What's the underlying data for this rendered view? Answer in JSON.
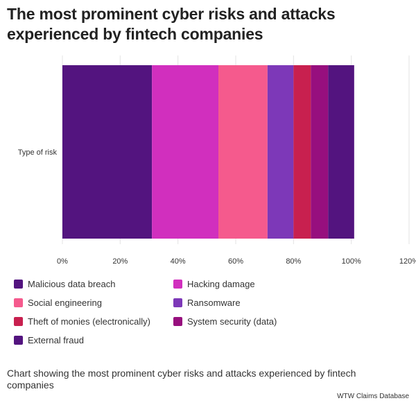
{
  "title": "The most prominent cyber risks and attacks experienced by fintech companies",
  "caption": "Chart showing the most prominent cyber risks and attacks experienced by fintech companies",
  "source": "WTW Claims Database",
  "chart_data": {
    "type": "bar",
    "orientation": "horizontal",
    "stacked": true,
    "categories": [
      "Type of risk"
    ],
    "series": [
      {
        "name": "Malicious data breach",
        "values": [
          31
        ],
        "color": "#53147f"
      },
      {
        "name": "Hacking damage",
        "values": [
          23
        ],
        "color": "#d12fbe"
      },
      {
        "name": "Social engineering",
        "values": [
          17
        ],
        "color": "#f55a8d"
      },
      {
        "name": "Ransomware",
        "values": [
          9
        ],
        "color": "#7d38b8"
      },
      {
        "name": "Theft of monies (electronically)",
        "values": [
          6
        ],
        "color": "#c8204f"
      },
      {
        "name": "System security (data)",
        "values": [
          6
        ],
        "color": "#970f7e"
      },
      {
        "name": "External fraud",
        "values": [
          9
        ],
        "color": "#53147f"
      }
    ],
    "xlim": [
      0,
      120
    ],
    "xticks": [
      "0%",
      "20%",
      "40%",
      "60%",
      "80%",
      "100%",
      "120%"
    ],
    "grid": true,
    "legend_position": "bottom"
  }
}
